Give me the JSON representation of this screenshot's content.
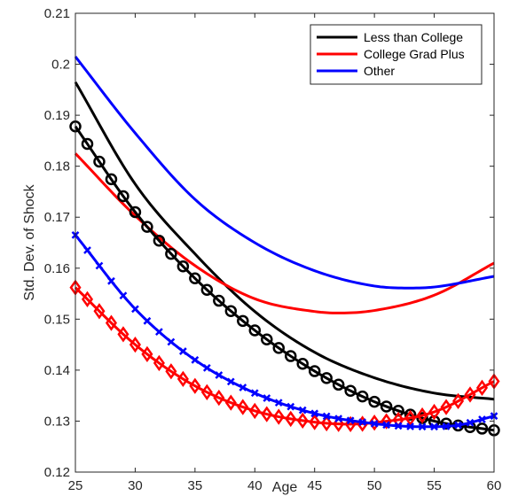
{
  "chart_data": {
    "type": "line",
    "title": "",
    "xlabel": "Age",
    "ylabel": "Std. Dev. of Shock",
    "xlim": [
      25,
      60
    ],
    "ylim": [
      0.12,
      0.21
    ],
    "xticks": [
      "25",
      "30",
      "35",
      "40",
      "45",
      "50",
      "55",
      "60"
    ],
    "yticks": [
      "0.12",
      "0.13",
      "0.14",
      "0.15",
      "0.16",
      "0.17",
      "0.18",
      "0.19",
      "0.2",
      "0.21"
    ],
    "grid": false,
    "legend_position": "top-right",
    "legend": [
      {
        "label": "Less than College",
        "color": "#000000"
      },
      {
        "label": "College Grad Plus",
        "color": "#ff0000"
      },
      {
        "label": "Other",
        "color": "#0000ff"
      }
    ],
    "series": [
      {
        "name": "Less than College",
        "color": "#000000",
        "marker": "none",
        "x": [
          25,
          30,
          35,
          40,
          45,
          50,
          55,
          60
        ],
        "y": [
          0.1965,
          0.1765,
          0.1628,
          0.1515,
          0.1435,
          0.1385,
          0.1355,
          0.1343
        ]
      },
      {
        "name": "College Grad Plus",
        "color": "#ff0000",
        "marker": "none",
        "x": [
          25,
          30,
          35,
          40,
          45,
          47,
          50,
          55,
          60
        ],
        "y": [
          0.1825,
          0.1703,
          0.1605,
          0.154,
          0.1515,
          0.1512,
          0.1517,
          0.1547,
          0.161
        ]
      },
      {
        "name": "Other",
        "color": "#0000ff",
        "marker": "none",
        "x": [
          25,
          30,
          35,
          40,
          45,
          50,
          53,
          55,
          60
        ],
        "y": [
          0.2015,
          0.1865,
          0.1735,
          0.165,
          0.1595,
          0.1565,
          0.1561,
          0.1563,
          0.1584
        ]
      },
      {
        "name": "",
        "color": "#000000",
        "marker": "circle",
        "x": [
          25,
          30,
          35,
          40,
          45,
          50,
          55,
          60
        ],
        "y": [
          0.1878,
          0.171,
          0.158,
          0.1478,
          0.1398,
          0.1338,
          0.13,
          0.1282
        ]
      },
      {
        "name": "",
        "color": "#ff0000",
        "marker": "diamond",
        "x": [
          25,
          30,
          35,
          40,
          45,
          48,
          50,
          55,
          60
        ],
        "y": [
          0.1562,
          0.145,
          0.1369,
          0.132,
          0.1298,
          0.1294,
          0.1297,
          0.1318,
          0.1378
        ]
      },
      {
        "name": "",
        "color": "#0000ff",
        "marker": "x",
        "x": [
          25,
          30,
          35,
          40,
          45,
          50,
          54,
          57,
          60
        ],
        "y": [
          0.1665,
          0.152,
          0.142,
          0.1355,
          0.1315,
          0.1295,
          0.1289,
          0.1292,
          0.131
        ]
      }
    ]
  }
}
